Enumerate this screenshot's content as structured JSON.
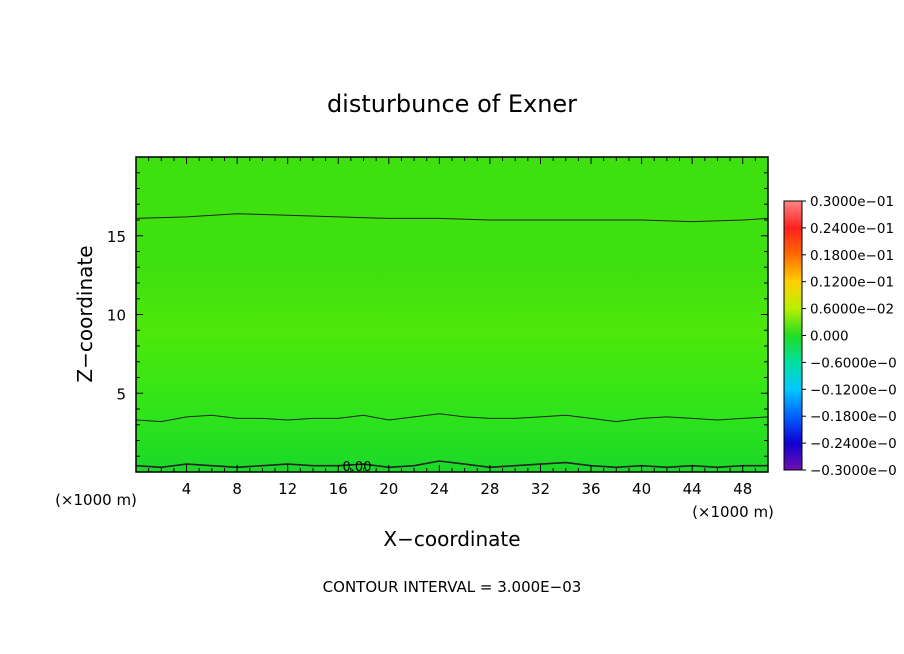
{
  "chart_data": {
    "type": "heatmap",
    "title": "disturbunce of Exner",
    "xlabel": "X−coordinate",
    "ylabel": "Z−coordinate",
    "x_unit": "(×1000 m)",
    "x_unit_left": "(×1000 m)",
    "xlim": [
      0,
      50
    ],
    "ylim": [
      0,
      20
    ],
    "xticks": [
      4,
      8,
      12,
      16,
      20,
      24,
      28,
      32,
      36,
      40,
      44,
      48
    ],
    "yticks": [
      5,
      10,
      15
    ],
    "footer": "CONTOUR INTERVAL = 3.000E−03",
    "contour_label": "0.00",
    "contours": [
      {
        "x": [
          0,
          4,
          8,
          12,
          16,
          20,
          24,
          28,
          32,
          36,
          40,
          44,
          48,
          50
        ],
        "y": [
          16.1,
          16.2,
          16.4,
          16.3,
          16.2,
          16.1,
          16.1,
          16.0,
          16.0,
          16.0,
          16.0,
          15.9,
          16.0,
          16.1
        ]
      },
      {
        "x": [
          0,
          2,
          4,
          6,
          8,
          10,
          12,
          14,
          16,
          18,
          20,
          22,
          24,
          26,
          28,
          30,
          32,
          34,
          36,
          38,
          40,
          42,
          44,
          46,
          48,
          50
        ],
        "y": [
          3.3,
          3.2,
          3.5,
          3.6,
          3.4,
          3.4,
          3.3,
          3.4,
          3.4,
          3.6,
          3.3,
          3.5,
          3.7,
          3.5,
          3.4,
          3.4,
          3.5,
          3.6,
          3.4,
          3.2,
          3.4,
          3.5,
          3.4,
          3.3,
          3.4,
          3.5
        ]
      },
      {
        "x": [
          0,
          2,
          4,
          6,
          8,
          10,
          12,
          14,
          16,
          18,
          20,
          22,
          24,
          26,
          28,
          30,
          32,
          34,
          36,
          38,
          40,
          42,
          44,
          46,
          48,
          50
        ],
        "y": [
          0.4,
          0.3,
          0.5,
          0.4,
          0.3,
          0.4,
          0.5,
          0.4,
          0.4,
          0.5,
          0.3,
          0.4,
          0.7,
          0.5,
          0.3,
          0.4,
          0.5,
          0.6,
          0.4,
          0.3,
          0.4,
          0.3,
          0.4,
          0.3,
          0.4,
          0.4
        ]
      }
    ],
    "field_colors": {
      "upper": "#3fe010",
      "middle": "#4de80a",
      "lower": "#2ee41a",
      "base": "#1bd82a"
    },
    "colorbar": {
      "labels": [
        "0.3000e−01",
        "0.2400e−01",
        "0.1800e−01",
        "0.1200e−01",
        "0.6000e−02",
        "0.000",
        "−0.6000e−0",
        "−0.1200e−0",
        "−0.1800e−0",
        "−0.2400e−0",
        "−0.3000e−0"
      ],
      "colors": [
        "#ff8585",
        "#ff2020",
        "#ff6a00",
        "#ffd000",
        "#b8ef00",
        "#22dd22",
        "#00e0a0",
        "#00c8ff",
        "#0060ff",
        "#1000d0",
        "#7010b0"
      ]
    }
  }
}
